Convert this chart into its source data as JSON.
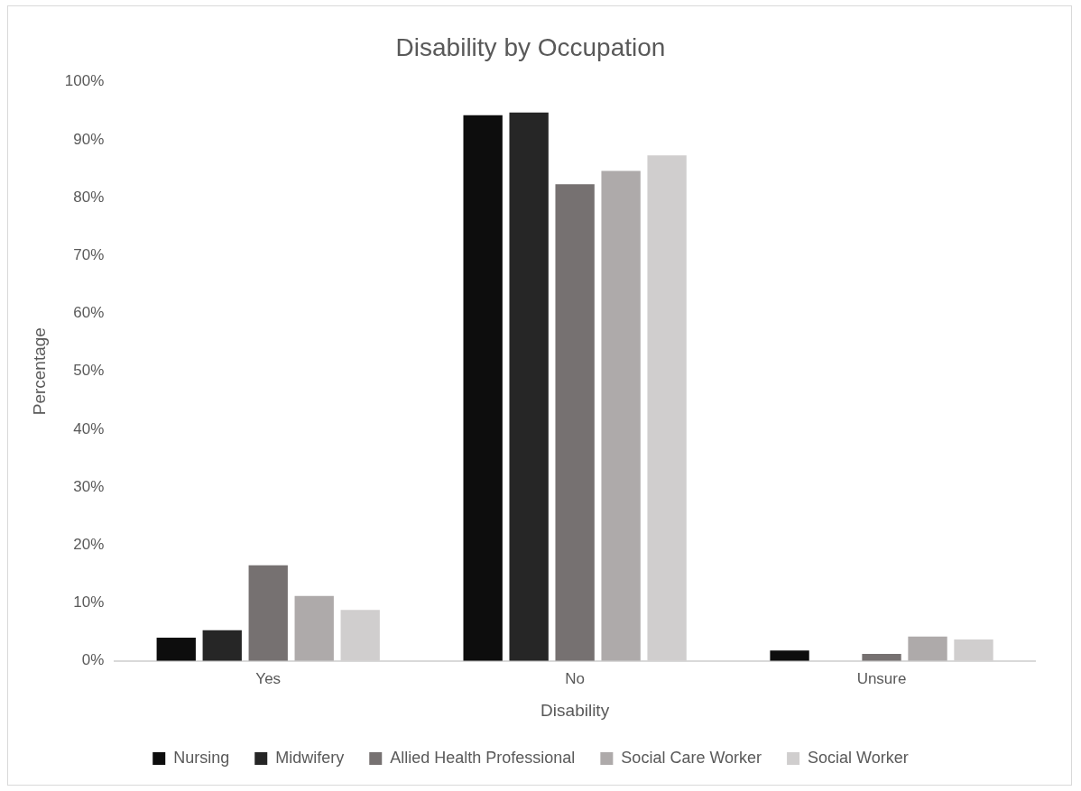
{
  "chart_data": {
    "type": "bar",
    "title": "Disability by Occupation",
    "xlabel": "Disability",
    "ylabel": "Percentage",
    "categories": [
      "Yes",
      "No",
      "Unsure"
    ],
    "series": [
      {
        "name": "Nursing",
        "color": "#0d0d0d",
        "values": [
          4.0,
          94.2,
          1.8
        ]
      },
      {
        "name": "Midwifery",
        "color": "#262626",
        "values": [
          5.3,
          94.7,
          0
        ]
      },
      {
        "name": "Allied Health Professional",
        "color": "#767171",
        "values": [
          16.5,
          82.3,
          1.2
        ]
      },
      {
        "name": "Social Care Worker",
        "color": "#aeaaaa",
        "values": [
          11.2,
          84.6,
          4.2
        ]
      },
      {
        "name": "Social Worker",
        "color": "#d0cece",
        "values": [
          8.8,
          87.3,
          3.7
        ]
      }
    ],
    "ylim": [
      0,
      100
    ],
    "yticks": [
      {
        "value": 0,
        "label": "0%"
      },
      {
        "value": 10,
        "label": "10%"
      },
      {
        "value": 20,
        "label": "20%"
      },
      {
        "value": 30,
        "label": "30%"
      },
      {
        "value": 40,
        "label": "40%"
      },
      {
        "value": 50,
        "label": "50%"
      },
      {
        "value": 60,
        "label": "60%"
      },
      {
        "value": 70,
        "label": "70%"
      },
      {
        "value": 80,
        "label": "80%"
      },
      {
        "value": 90,
        "label": "90%"
      },
      {
        "value": 100,
        "label": "100%"
      }
    ],
    "grid": false,
    "legend": "bottom"
  }
}
